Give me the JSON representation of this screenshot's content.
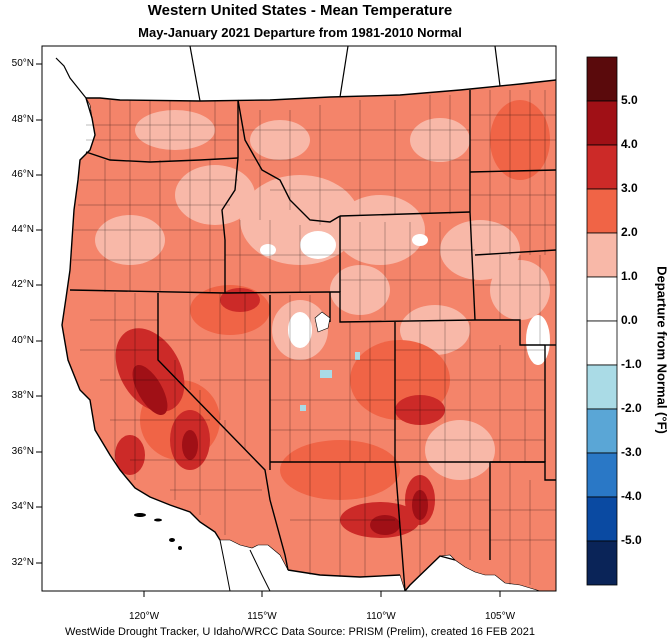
{
  "title": "Western United States - Mean Temperature",
  "subtitle": "May-January 2021  Departure from 1981-2010 Normal",
  "credit": "WestWide Drought Tracker, U Idaho/WRCC Data Source: PRISM (Prelim), created 16 FEB 2021",
  "latitude_labels": [
    "50°N",
    "48°N",
    "46°N",
    "44°N",
    "42°N",
    "40°N",
    "38°N",
    "36°N",
    "34°N",
    "32°N"
  ],
  "longitude_labels": [
    "120°W",
    "115°W",
    "110°W",
    "105°W"
  ],
  "colorbar": {
    "title": "Departure from Normal (°F)",
    "labels": [
      "5.0",
      "4.0",
      "3.0",
      "2.0",
      "1.0",
      "0.0",
      "-1.0",
      "-2.0",
      "-3.0",
      "-4.0",
      "-5.0"
    ],
    "colors": [
      "#5a0a0c",
      "#a01016",
      "#cc2a28",
      "#f06446",
      "#f8b8a8",
      "#ffffff",
      "#ffffff",
      "#aadbe6",
      "#5aa6d6",
      "#2a78c6",
      "#0a4aa2",
      "#0a2458"
    ]
  },
  "map_colors": {
    "land_base": "#f4846a",
    "light": "#f8b8a8",
    "medium": "#f06446",
    "hot": "#cc2a28",
    "very_hot": "#a01016",
    "cool": "#aadbe6",
    "neutral": "#ffffff"
  }
}
